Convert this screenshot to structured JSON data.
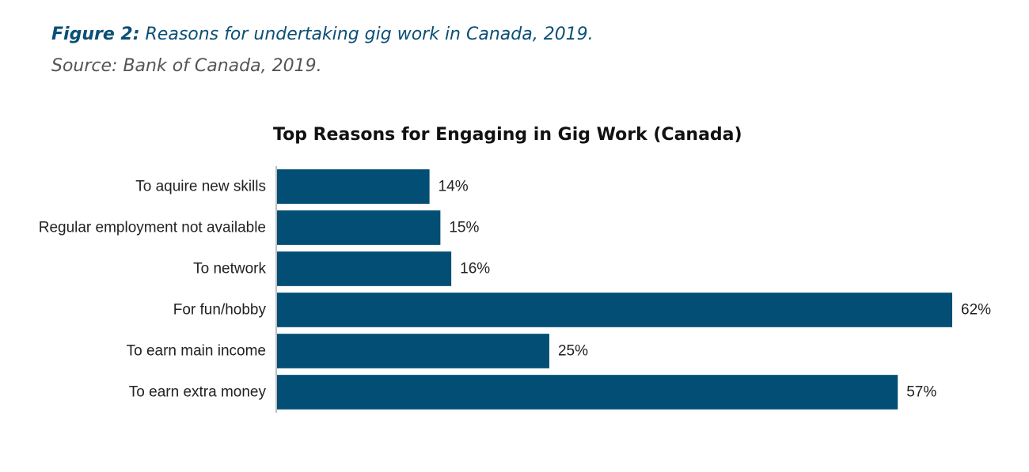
{
  "caption": {
    "figure_label": "Figure 2:",
    "figure_title": "Reasons for undertaking gig work in Canada, 2019.",
    "source": "Source: Bank of Canada, 2019."
  },
  "chart_data": {
    "type": "bar",
    "orientation": "horizontal",
    "title": "Top Reasons for Engaging in Gig Work (Canada)",
    "xlabel": "",
    "ylabel": "",
    "categories": [
      "To aquire new skills",
      "Regular employment not available",
      "To network",
      "For fun/hobby",
      "To earn main income",
      "To earn extra money"
    ],
    "values": [
      14,
      15,
      16,
      62,
      25,
      57
    ],
    "value_labels": [
      "14%",
      "15%",
      "16%",
      "62%",
      "25%",
      "57%"
    ],
    "unit": "%",
    "xlim": [
      0,
      62
    ],
    "grid": false,
    "legend": "none",
    "bar_color": "#034e75",
    "axis_color": "#aaaaaa"
  }
}
